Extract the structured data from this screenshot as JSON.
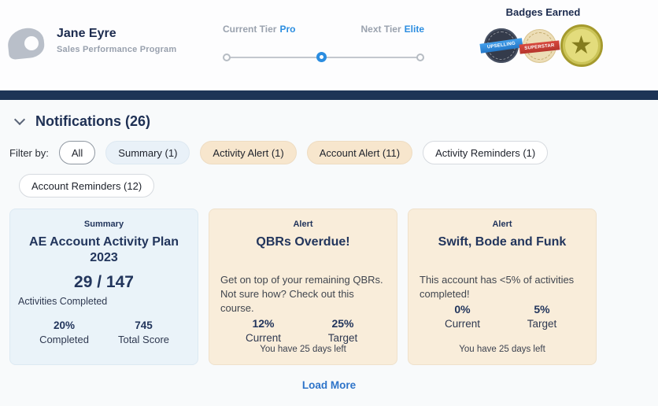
{
  "header": {
    "user": {
      "name": "Jane Eyre",
      "program": "Sales Performance Program"
    },
    "tier": {
      "current_label": "Current Tier",
      "current_value": "Pro",
      "next_label": "Next Tier",
      "next_value": "Elite"
    },
    "badges": {
      "title": "Badges Earned",
      "items": [
        {
          "name": "upselling",
          "label": "UPSELLING"
        },
        {
          "name": "superstar",
          "label": "SUPERSTAR"
        },
        {
          "name": "gold-star",
          "label": "★"
        }
      ]
    }
  },
  "notifications": {
    "title": "Notifications (26)",
    "filter_label": "Filter by:",
    "filters": [
      {
        "label": "All"
      },
      {
        "label": "Summary (1)"
      },
      {
        "label": "Activity Alert (1)"
      },
      {
        "label": "Account Alert (11)"
      },
      {
        "label": "Activity Reminders (1)"
      },
      {
        "label": "Account Reminders (12)"
      }
    ],
    "cards": [
      {
        "type": "summary",
        "tag": "Summary",
        "title": "AE Account Activity Plan 2023",
        "big_value": "29 / 147",
        "sub_label": "Activities Completed",
        "stats": [
          {
            "value": "20%",
            "label": "Completed"
          },
          {
            "value": "745",
            "label": "Total Score"
          }
        ]
      },
      {
        "type": "alert",
        "tag": "Alert",
        "title": "QBRs Overdue!",
        "body": "Get on top of your remaining QBRs. Not sure how? Check out this course.",
        "stats": [
          {
            "value": "12%",
            "label": "Current"
          },
          {
            "value": "25%",
            "label": "Target"
          }
        ],
        "footer": "You have 25 days left"
      },
      {
        "type": "alert",
        "tag": "Alert",
        "title": "Swift, Bode and Funk",
        "body": "This account has <5% of activities completed!",
        "stats": [
          {
            "value": "0%",
            "label": "Current"
          },
          {
            "value": "5%",
            "label": "Target"
          }
        ],
        "footer": "You have 25 days left"
      }
    ],
    "load_more": "Load More"
  },
  "colors": {
    "accent_blue": "#2b8de0",
    "navy_bar": "#1d3456",
    "summary_bg": "#eaf3f9",
    "alert_bg": "#f9edda"
  }
}
